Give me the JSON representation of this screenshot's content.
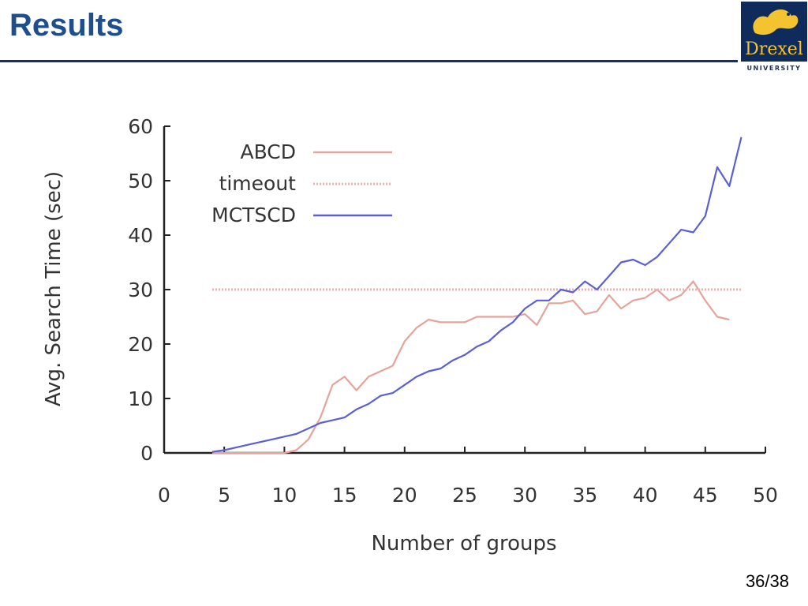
{
  "slide": {
    "title": "Results",
    "page_number": "36/38"
  },
  "logo": {
    "word": "Drexel",
    "subtitle": "UNIVERSITY",
    "colors": {
      "background": "#0f2b5c",
      "gold": "#f4c430"
    }
  },
  "chart_data": {
    "type": "line",
    "xlabel": "Number of groups",
    "ylabel": "Avg. Search Time (sec)",
    "xlim": [
      0,
      50
    ],
    "ylim": [
      0,
      60
    ],
    "xticks": [
      0,
      5,
      10,
      15,
      20,
      25,
      30,
      35,
      40,
      45,
      50
    ],
    "yticks": [
      0,
      10,
      20,
      30,
      40,
      50,
      60
    ],
    "grid": false,
    "legend_position": "top-left",
    "series": [
      {
        "name": "ABCD",
        "color": "#e5a39a",
        "style": "solid",
        "x": [
          4,
          5,
          6,
          7,
          8,
          9,
          10,
          11,
          12,
          13,
          14,
          15,
          16,
          17,
          18,
          19,
          20,
          21,
          22,
          23,
          24,
          25,
          26,
          27,
          28,
          29,
          30,
          31,
          32,
          33,
          34,
          35,
          36,
          37,
          38,
          39,
          40,
          41,
          42,
          43,
          44,
          45,
          46,
          47
        ],
        "y": [
          0,
          0,
          0,
          0,
          0,
          0,
          0,
          0.5,
          2.5,
          6.5,
          12.5,
          14,
          11.5,
          14,
          15,
          16,
          20.5,
          23,
          24.5,
          24,
          24,
          24,
          25,
          25,
          25,
          25,
          25.5,
          23.5,
          27.5,
          27.5,
          28,
          25.5,
          26,
          29,
          26.5,
          28,
          28.5,
          30,
          28,
          29,
          31.5,
          28,
          25,
          24.5
        ]
      },
      {
        "name": "timeout",
        "color": "#f0b0b0",
        "style": "dotted",
        "x": [
          4,
          48
        ],
        "y": [
          30,
          30
        ]
      },
      {
        "name": "MCTSCD",
        "color": "#5a5fd6",
        "style": "solid",
        "x": [
          4,
          5,
          6,
          7,
          8,
          9,
          10,
          11,
          12,
          13,
          14,
          15,
          16,
          17,
          18,
          19,
          20,
          21,
          22,
          23,
          24,
          25,
          26,
          27,
          28,
          29,
          30,
          31,
          32,
          33,
          34,
          35,
          36,
          37,
          38,
          39,
          40,
          41,
          42,
          43,
          44,
          45,
          46,
          47,
          48
        ],
        "y": [
          0.2,
          0.5,
          1,
          1.5,
          2,
          2.5,
          3,
          3.5,
          4.5,
          5.5,
          6,
          6.5,
          8,
          9,
          10.5,
          11,
          12.5,
          14,
          15,
          15.5,
          17,
          18,
          19.5,
          20.5,
          22.5,
          24,
          26.5,
          28,
          28,
          30,
          29.5,
          31.5,
          30,
          32.5,
          35,
          35.5,
          34.5,
          36,
          38.5,
          41,
          40.5,
          43.5,
          52.5,
          49,
          58
        ]
      }
    ]
  }
}
